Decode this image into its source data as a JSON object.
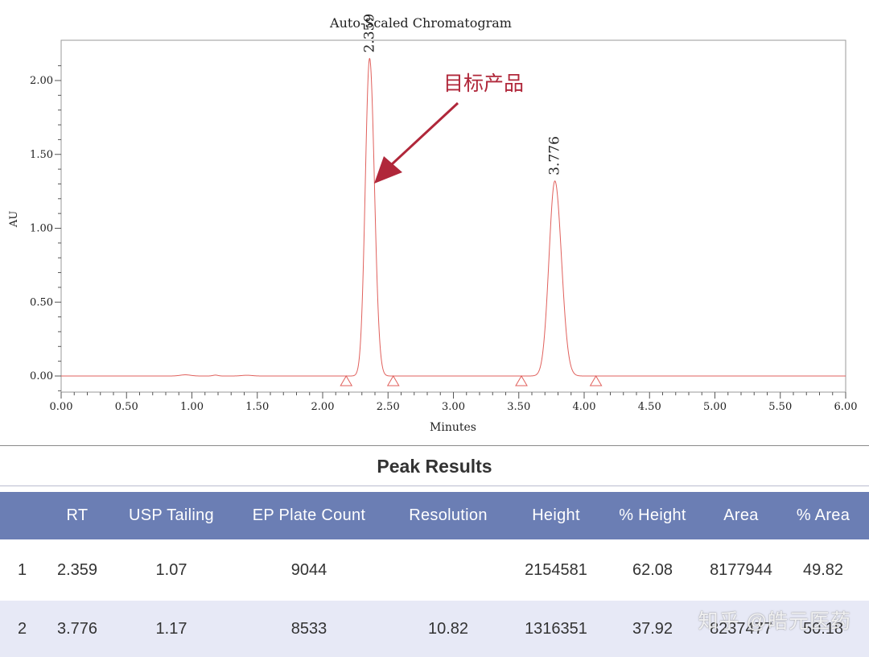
{
  "chart_data": {
    "type": "line",
    "title": "Auto-Scaled Chromatogram",
    "xlabel": "Minutes",
    "ylabel": "AU",
    "xlim": [
      0,
      6
    ],
    "ylim": [
      -0.1,
      2.25
    ],
    "x_ticks": [
      "0.00",
      "0.50",
      "1.00",
      "1.50",
      "2.00",
      "2.50",
      "3.00",
      "3.50",
      "4.00",
      "4.50",
      "5.00",
      "5.50",
      "6.00"
    ],
    "y_ticks": [
      "0.00",
      "0.50",
      "1.00",
      "1.50",
      "2.00"
    ],
    "grid": false,
    "line_color": "#e0605c",
    "peaks": [
      {
        "rt_label": "2.359",
        "x": 2.359,
        "height": 2.15,
        "sigma": 0.033
      },
      {
        "rt_label": "3.776",
        "x": 3.776,
        "height": 1.32,
        "sigma": 0.045
      }
    ],
    "baseline_markers": [
      2.18,
      2.54,
      3.52,
      4.09
    ],
    "annotation": {
      "text": "目标产品",
      "color": "#b0273a",
      "points_to_x": 2.359
    }
  },
  "results": {
    "title": "Peak Results",
    "columns": [
      "",
      "RT",
      "USP Tailing",
      "EP Plate Count",
      "Resolution",
      "Height",
      "% Height",
      "Area",
      "% Area"
    ],
    "rows": [
      [
        "1",
        "2.359",
        "1.07",
        "9044",
        "",
        "2154581",
        "62.08",
        "8177944",
        "49.82"
      ],
      [
        "2",
        "3.776",
        "1.17",
        "8533",
        "10.82",
        "1316351",
        "37.92",
        "8237477",
        "50.18"
      ]
    ]
  },
  "watermark": "知乎 @皓元医药"
}
